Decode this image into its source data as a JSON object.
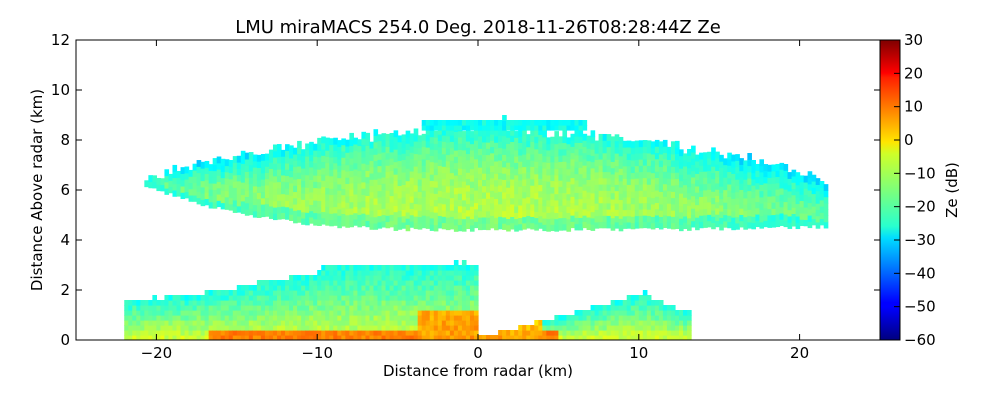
{
  "chart_data": {
    "type": "heatmap",
    "title": "LMU miraMACS 254.0 Deg. 2018-11-26T08:28:44Z  Ze",
    "xlabel": "Distance from radar (km)",
    "ylabel": "Distance Above radar  (km)",
    "xlim": [
      -25,
      25
    ],
    "ylim": [
      0,
      12
    ],
    "xticks": [
      -20,
      -10,
      0,
      10,
      20
    ],
    "xtick_labels": [
      "−20",
      "−10",
      "0",
      "10",
      "20"
    ],
    "yticks": [
      0,
      2,
      4,
      6,
      8,
      10,
      12
    ],
    "ytick_labels": [
      "0",
      "2",
      "4",
      "6",
      "8",
      "10",
      "12"
    ],
    "colorbar": {
      "label": "Ze (dB)",
      "range": [
        -60,
        30
      ],
      "ticks": [
        30,
        20,
        10,
        0,
        -10,
        -20,
        -30,
        -40,
        -50,
        -60
      ],
      "tick_labels": [
        "30",
        "20",
        "10",
        "0",
        "−10",
        "−20",
        "−30",
        "−40",
        "−50",
        "−60"
      ],
      "colormap": "jet"
    },
    "features": [
      {
        "name": "upper cloud layer",
        "x_range": [
          -21,
          21.5
        ],
        "y_range": [
          4.2,
          8.8
        ],
        "ze_range_db": [
          -30,
          -8
        ],
        "core_ze_db": -10
      },
      {
        "name": "lower cloud layer",
        "x_range": [
          -22,
          13
        ],
        "y_range": [
          0,
          3.4
        ],
        "ze_range_db": [
          -40,
          10
        ],
        "core_ze_db": 0
      }
    ]
  }
}
